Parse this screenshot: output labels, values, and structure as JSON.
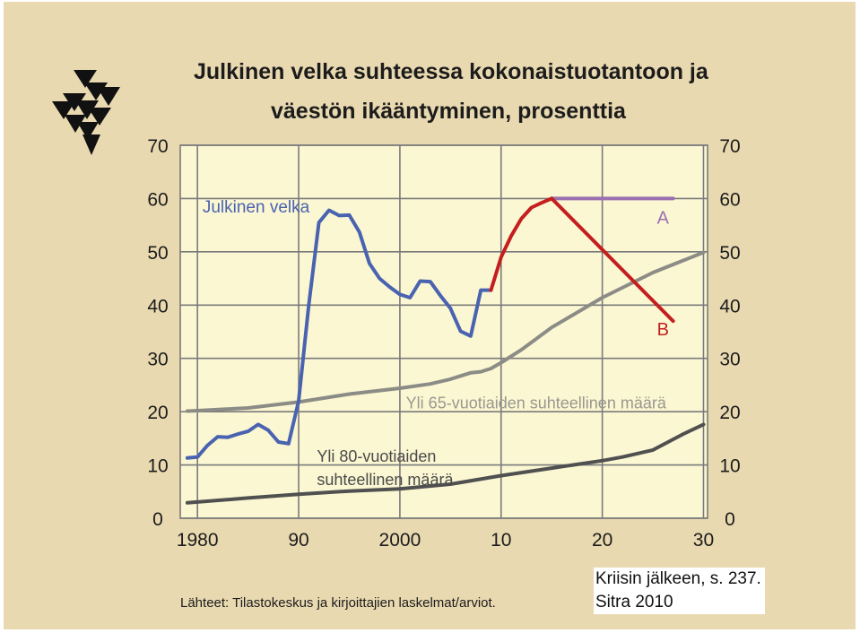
{
  "page": {
    "title_line1": "Julkinen velka suhteessa kokonaistuotantoon ja",
    "title_line2": "väestön ikääntyminen, prosenttia",
    "source": "Lähteet: Tilastokeskus ja kirjoittajien laskelmat/arviot.",
    "caption_line1": "Kriisin jälkeen, s. 237.",
    "caption_line2": "Sitra 2010"
  },
  "colors": {
    "panel_bg": "#e9d9b0",
    "plot_bg": "#fbf7d3",
    "grid": "#7a7a7a",
    "debt_history": "#4a63b0",
    "debt_projection": "#c41e1e",
    "scenario_a": "#9b6fb0",
    "age65": "#8c8c86",
    "age80": "#505050",
    "logo": "#111111"
  },
  "chart_data": {
    "type": "line",
    "title": "Julkinen velka suhteessa kokonaistuotantoon ja väestön ikääntyminen, prosenttia",
    "xlabel": "",
    "ylabel": "",
    "xlim": [
      1978.3,
      2030.4
    ],
    "ylim": [
      0,
      70
    ],
    "grid": true,
    "x_tick_values": [
      1980,
      1990,
      2000,
      2010,
      2020,
      2030
    ],
    "x_tick_labels": [
      "1980",
      "90",
      "2000",
      "10",
      "20",
      "30"
    ],
    "y_ticks": [
      0,
      10,
      20,
      30,
      40,
      50,
      60,
      70
    ],
    "y_tick_labels": [
      "0",
      "10",
      "20",
      "30",
      "40",
      "50",
      "60",
      "70"
    ],
    "series": [
      {
        "name": "Julkinen velka",
        "role": "debt",
        "color": "#4a63b0",
        "x": [
          1979,
          1980,
          1981,
          1982,
          1983,
          1984,
          1985,
          1986,
          1987,
          1988,
          1989,
          1990,
          1991,
          1992,
          1993,
          1994,
          1995,
          1996,
          1997,
          1998,
          1999,
          2000,
          2001,
          2002,
          2003,
          2004,
          2005,
          2006,
          2007,
          2008,
          2009
        ],
        "y": [
          11.3,
          11.5,
          13.7,
          15.3,
          15.2,
          15.8,
          16.3,
          17.6,
          16.5,
          14.3,
          14.0,
          22.0,
          40.0,
          55.5,
          57.8,
          56.8,
          56.9,
          53.7,
          47.8,
          45.0,
          43.4,
          42.0,
          41.4,
          44.5,
          44.4,
          41.8,
          39.4,
          35.1,
          34.2,
          42.8,
          42.8
        ]
      },
      {
        "name": "",
        "role": "debt-projection",
        "color": "#c41e1e",
        "x": [
          2009,
          2010,
          2011,
          2012,
          2013,
          2014,
          2015
        ],
        "y": [
          42.8,
          49.0,
          53.0,
          56.2,
          58.3,
          59.2,
          60.0
        ]
      },
      {
        "name": "A",
        "role": "scenario-a",
        "color": "#9b6fb0",
        "x": [
          2015,
          2027
        ],
        "y": [
          60.0,
          60.0
        ]
      },
      {
        "name": "B",
        "role": "scenario-b",
        "color": "#c41e1e",
        "x": [
          2015,
          2027
        ],
        "y": [
          60.0,
          37.0
        ]
      },
      {
        "name": "Yli 65-vuotiaiden suhteellinen määrä",
        "role": "age65",
        "color": "#8c8c86",
        "x": [
          1979,
          1980,
          1985,
          1990,
          1995,
          2000,
          2003,
          2005,
          2006,
          2007,
          2008,
          2009,
          2010,
          2012,
          2015,
          2020,
          2025,
          2030
        ],
        "y": [
          20.1,
          20.2,
          20.7,
          21.8,
          23.3,
          24.4,
          25.2,
          26.1,
          26.7,
          27.3,
          27.5,
          28.1,
          29.2,
          31.6,
          35.8,
          41.4,
          46.1,
          49.9
        ]
      },
      {
        "name": "Yli 80-vuotiaiden suhteellinen määrä",
        "role": "age80",
        "color": "#505050",
        "x": [
          1979,
          1985,
          1990,
          1995,
          2000,
          2005,
          2010,
          2015,
          2020,
          2022,
          2025,
          2028,
          2030
        ],
        "y": [
          2.9,
          3.8,
          4.5,
          5.1,
          5.5,
          6.4,
          8.0,
          9.4,
          10.8,
          11.5,
          12.8,
          15.8,
          17.6
        ]
      }
    ],
    "annotations": [
      {
        "text": "Julkinen velka",
        "x": 1980.5,
        "y": 57.4,
        "color": "#4a63b0",
        "size": 19
      },
      {
        "text": "A",
        "x": 2025.4,
        "y": 55.3,
        "color": "#9b6fb0",
        "size": 20
      },
      {
        "text": "B",
        "x": 2025.4,
        "y": 34.3,
        "color": "#c41e1e",
        "size": 20
      },
      {
        "text": "Yli 65-vuotiaiden suhteellinen määrä",
        "x": 2000.6,
        "y": 20.6,
        "color": "#98988f",
        "size": 18
      },
      {
        "text": "Yli 80-vuotiaiden",
        "x": 1991.8,
        "y": 10.6,
        "color": "#4a4a4a",
        "size": 18
      },
      {
        "text": "suhteellinen määrä",
        "x": 1991.8,
        "y": 6.2,
        "color": "#4a4a4a",
        "size": 18
      }
    ]
  }
}
